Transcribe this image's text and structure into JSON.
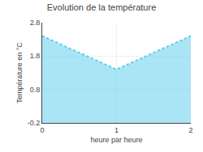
{
  "chart_data": {
    "type": "area",
    "title": "Evolution de la température",
    "xlabel": "heure par heure",
    "ylabel": "Température en °C",
    "x": [
      0,
      1,
      2
    ],
    "values": [
      2.4,
      1.4,
      2.4
    ],
    "color": "#55ccee",
    "line_style": "dotted",
    "xlim": [
      0,
      2
    ],
    "xticks": [
      0,
      1,
      2
    ],
    "ylim": [
      -0.2,
      2.8
    ],
    "yticks": [
      -0.2,
      0.8,
      1.8,
      2.8
    ],
    "grid": true
  }
}
